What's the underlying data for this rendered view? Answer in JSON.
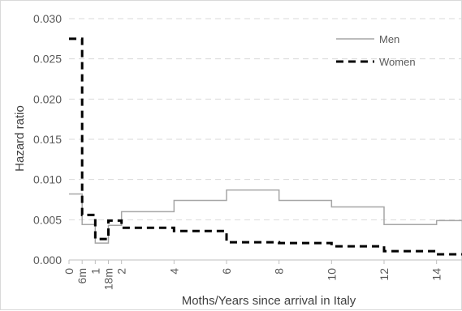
{
  "chart_data": {
    "type": "line",
    "title": "",
    "xlabel": "Moths/Years since arrival in Italy",
    "ylabel": "Hazard ratio",
    "xlim": [
      0,
      15
    ],
    "ylim": [
      0,
      0.03
    ],
    "grid": true,
    "legend_position": "top-right",
    "x_ticks": [
      {
        "value": 0,
        "label": "0"
      },
      {
        "value": 0.5,
        "label": "6m"
      },
      {
        "value": 1,
        "label": "1"
      },
      {
        "value": 1.5,
        "label": "18m"
      },
      {
        "value": 2,
        "label": "2"
      },
      {
        "value": 4,
        "label": "4"
      },
      {
        "value": 6,
        "label": "6"
      },
      {
        "value": 8,
        "label": "8"
      },
      {
        "value": 10,
        "label": "10"
      },
      {
        "value": 12,
        "label": "12"
      },
      {
        "value": 14,
        "label": "14"
      }
    ],
    "y_ticks": [
      {
        "value": 0.0,
        "label": "0.000"
      },
      {
        "value": 0.005,
        "label": "0.005"
      },
      {
        "value": 0.01,
        "label": "0.010"
      },
      {
        "value": 0.015,
        "label": "0.015"
      },
      {
        "value": 0.02,
        "label": "0.020"
      },
      {
        "value": 0.025,
        "label": "0.025"
      },
      {
        "value": 0.03,
        "label": "0.030"
      }
    ],
    "series": [
      {
        "name": "Men",
        "style": "solid",
        "color": "#a6a6a6",
        "x": [
          0,
          0.5,
          1,
          1.5,
          2,
          4,
          6,
          8,
          10,
          12,
          14,
          15
        ],
        "y": [
          0.0082,
          0.0044,
          0.0021,
          0.0043,
          0.006,
          0.0074,
          0.0087,
          0.0074,
          0.0066,
          0.0044,
          0.0049,
          0.0049
        ]
      },
      {
        "name": "Women",
        "style": "dashed",
        "color": "#000000",
        "x": [
          0,
          0.5,
          1,
          1.5,
          2,
          4,
          6,
          8,
          10,
          12,
          14,
          15
        ],
        "y": [
          0.0275,
          0.0056,
          0.0026,
          0.0049,
          0.004,
          0.0036,
          0.0022,
          0.0021,
          0.0017,
          0.0011,
          0.0007,
          0.0007
        ]
      }
    ]
  }
}
